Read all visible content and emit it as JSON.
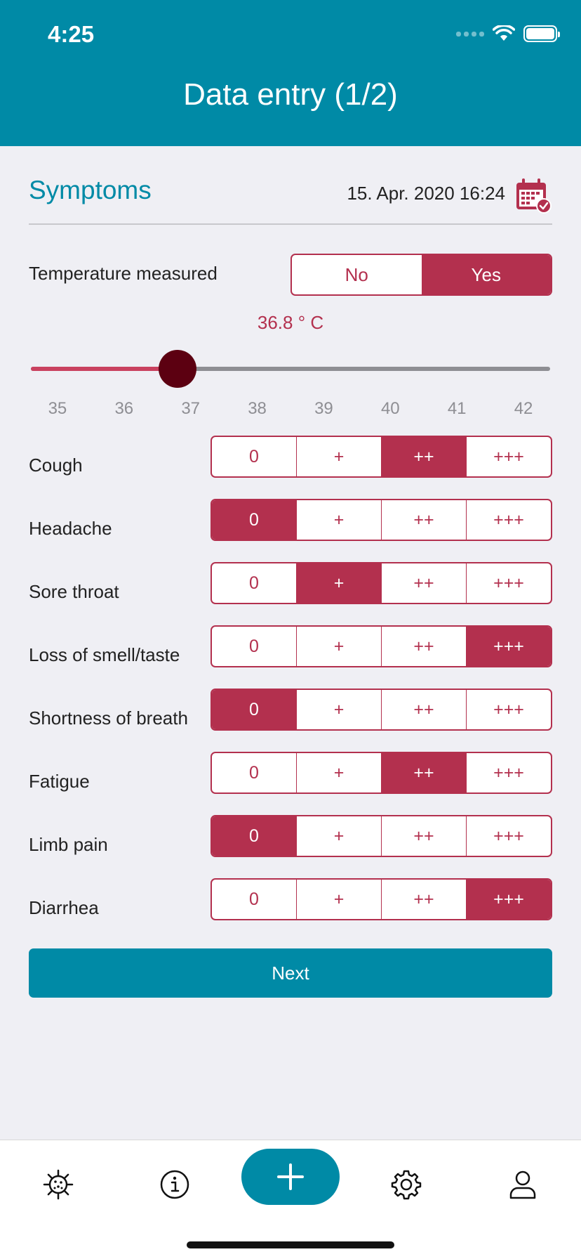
{
  "status_bar": {
    "time": "4:25"
  },
  "header": {
    "title": "Data entry (1/2)"
  },
  "section": {
    "title": "Symptoms",
    "datetime": "15. Apr. 2020 16:24"
  },
  "temperature": {
    "label": "Temperature measured",
    "options": [
      "No",
      "Yes"
    ],
    "selected": "Yes",
    "value_text": "36.8 ° C",
    "value": 36.8,
    "min": 34.6,
    "max": 42.4,
    "ticks": [
      "35",
      "36",
      "37",
      "38",
      "39",
      "40",
      "41",
      "42"
    ]
  },
  "scale_options": [
    "0",
    "+",
    "++",
    "+++"
  ],
  "symptoms": [
    {
      "label": "Cough",
      "selected": 2
    },
    {
      "label": "Headache",
      "selected": 0
    },
    {
      "label": "Sore throat",
      "selected": 1
    },
    {
      "label": "Loss of smell/taste",
      "selected": 3
    },
    {
      "label": "Shortness of breath",
      "selected": 0
    },
    {
      "label": "Fatigue",
      "selected": 2
    },
    {
      "label": "Limb pain",
      "selected": 0
    },
    {
      "label": "Diarrhea",
      "selected": 3
    }
  ],
  "next_label": "Next",
  "tabbar": {
    "items": [
      "virus-icon",
      "info-icon",
      "plus-icon",
      "gear-icon",
      "person-icon"
    ]
  },
  "colors": {
    "primary": "#008aa6",
    "accent": "#b3304e",
    "thumb": "#5c0011"
  }
}
